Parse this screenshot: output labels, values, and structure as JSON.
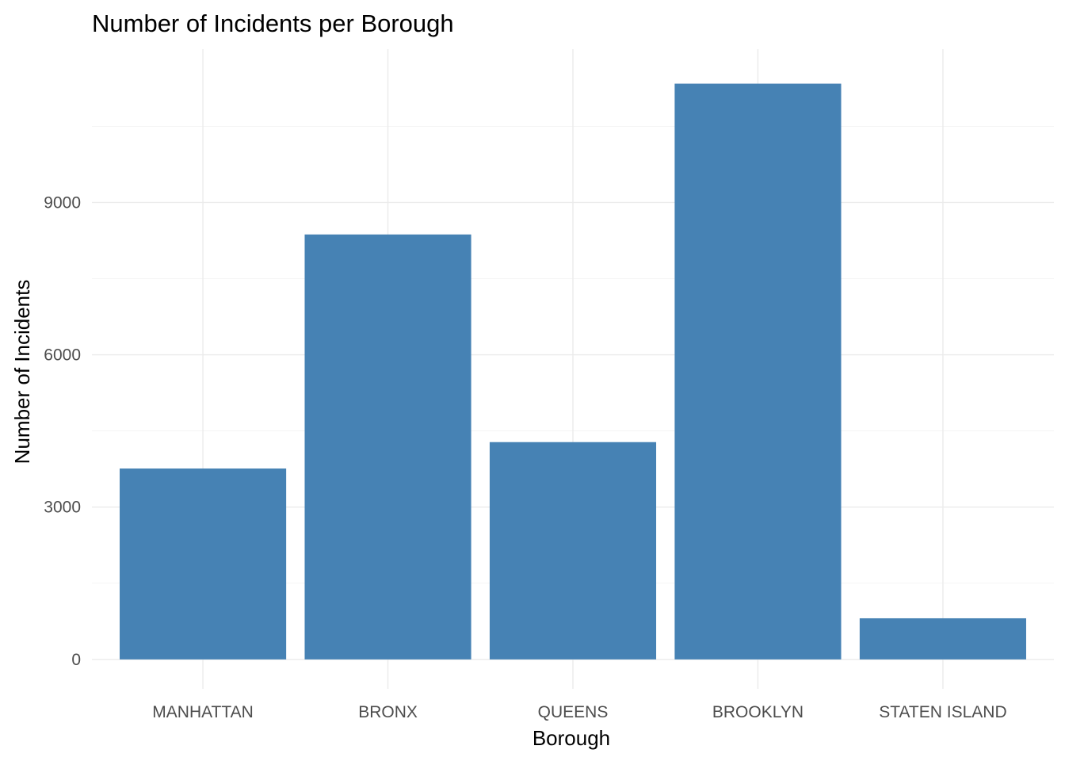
{
  "chart_data": {
    "type": "bar",
    "title": "Number of Incidents per Borough",
    "xlabel": "Borough",
    "ylabel": "Number of Incidents",
    "categories": [
      "MANHATTAN",
      "BRONX",
      "QUEENS",
      "BROOKLYN",
      "STATEN ISLAND"
    ],
    "values": [
      3760,
      8370,
      4280,
      11340,
      810
    ],
    "ylim": [
      -580,
      12020
    ],
    "yticks": [
      0,
      3000,
      6000,
      9000
    ],
    "ytick_labels": [
      "0",
      "3000",
      "6000",
      "9000"
    ],
    "grid": true,
    "legend": "none",
    "bar_color": "#4682b4"
  }
}
